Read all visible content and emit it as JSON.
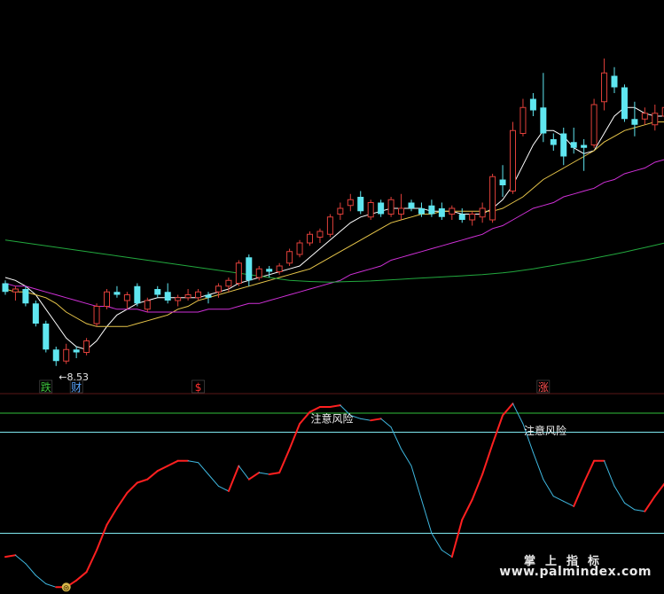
{
  "watermark": {
    "title": "掌上指标",
    "url": "www.palmindex.com"
  },
  "colors": {
    "up": "#e0403a",
    "down": "#5fe6f0",
    "ma5": "#ffffff",
    "ma10": "#e8c64a",
    "ma20": "#d030d8",
    "ma60": "#22a83e",
    "osc_up": "#ff2020",
    "osc_down": "#3fb8e0",
    "level_line": "#7fe8f0",
    "divider_green": "#2fbf3a",
    "divider_red": "#5a1818"
  },
  "chart_data": [
    {
      "type": "candlestick",
      "title": "",
      "low_annotation": "←8.53",
      "signals": [
        {
          "text": "跌",
          "color": "#3ec43e",
          "at": 4
        },
        {
          "text": "财",
          "color": "#5aa6ff",
          "at": 7
        },
        {
          "text": "$",
          "color": "#ff3030",
          "at": 19
        },
        {
          "text": "涨",
          "color": "#ff5050",
          "at": 53
        }
      ],
      "candles": [
        [
          11.4,
          11.5,
          11.0,
          11.1
        ],
        [
          11.1,
          11.3,
          10.8,
          11.2
        ],
        [
          11.2,
          11.3,
          10.6,
          10.7
        ],
        [
          10.7,
          10.8,
          9.9,
          10.0
        ],
        [
          10.0,
          10.1,
          9.0,
          9.1
        ],
        [
          9.1,
          9.2,
          8.53,
          8.7
        ],
        [
          8.7,
          9.3,
          8.6,
          9.1
        ],
        [
          9.1,
          9.2,
          8.8,
          9.0
        ],
        [
          9.0,
          9.5,
          8.9,
          9.4
        ],
        [
          10.0,
          10.7,
          9.9,
          10.6
        ],
        [
          10.6,
          11.2,
          10.5,
          11.1
        ],
        [
          11.1,
          11.3,
          10.9,
          11.0
        ],
        [
          10.8,
          11.1,
          10.5,
          11.0
        ],
        [
          11.3,
          11.4,
          10.6,
          10.7
        ],
        [
          10.5,
          10.9,
          10.4,
          10.8
        ],
        [
          11.2,
          11.3,
          10.9,
          11.0
        ],
        [
          11.1,
          11.4,
          10.7,
          10.8
        ],
        [
          10.8,
          11.0,
          10.6,
          10.9
        ],
        [
          10.9,
          11.2,
          10.8,
          11.0
        ],
        [
          10.9,
          11.2,
          10.8,
          11.1
        ],
        [
          11.0,
          11.1,
          10.7,
          10.9
        ],
        [
          11.1,
          11.4,
          10.9,
          11.3
        ],
        [
          11.3,
          11.6,
          11.1,
          11.5
        ],
        [
          11.4,
          12.2,
          11.3,
          12.1
        ],
        [
          12.3,
          12.4,
          11.3,
          11.5
        ],
        [
          11.6,
          12.0,
          11.5,
          11.9
        ],
        [
          11.9,
          12.0,
          11.6,
          11.8
        ],
        [
          11.8,
          12.1,
          11.7,
          12.0
        ],
        [
          12.1,
          12.6,
          12.0,
          12.5
        ],
        [
          12.4,
          12.9,
          12.3,
          12.8
        ],
        [
          12.8,
          13.2,
          12.7,
          13.1
        ],
        [
          13.0,
          13.3,
          12.8,
          13.2
        ],
        [
          13.1,
          13.8,
          13.0,
          13.7
        ],
        [
          13.8,
          14.2,
          13.6,
          14.0
        ],
        [
          14.1,
          14.5,
          13.9,
          14.3
        ],
        [
          14.4,
          14.6,
          13.8,
          13.9
        ],
        [
          13.7,
          14.3,
          13.6,
          14.2
        ],
        [
          14.2,
          14.3,
          13.7,
          13.8
        ],
        [
          13.8,
          14.4,
          13.7,
          14.3
        ],
        [
          13.8,
          14.5,
          13.6,
          14.0
        ],
        [
          14.2,
          14.3,
          13.9,
          14.0
        ],
        [
          14.0,
          14.2,
          13.7,
          13.8
        ],
        [
          14.1,
          14.3,
          13.7,
          13.8
        ],
        [
          14.0,
          14.2,
          13.6,
          13.7
        ],
        [
          13.8,
          14.1,
          13.6,
          14.0
        ],
        [
          13.8,
          14.0,
          13.5,
          13.6
        ],
        [
          13.6,
          13.9,
          13.4,
          13.8
        ],
        [
          13.7,
          14.2,
          13.5,
          14.0
        ],
        [
          13.6,
          15.2,
          13.5,
          15.1
        ],
        [
          15.0,
          15.5,
          14.4,
          14.8
        ],
        [
          14.6,
          17.0,
          14.5,
          16.7
        ],
        [
          16.6,
          17.8,
          16.5,
          17.5
        ],
        [
          17.8,
          18.0,
          17.2,
          17.4
        ],
        [
          17.5,
          18.7,
          16.3,
          16.6
        ],
        [
          16.4,
          16.6,
          16.0,
          16.2
        ],
        [
          16.6,
          16.8,
          15.5,
          15.8
        ],
        [
          16.3,
          16.8,
          15.9,
          16.1
        ],
        [
          16.2,
          16.4,
          15.3,
          16.1
        ],
        [
          16.2,
          17.8,
          16.1,
          17.6
        ],
        [
          17.7,
          19.2,
          17.4,
          18.7
        ],
        [
          18.6,
          18.9,
          18.0,
          18.2
        ],
        [
          18.2,
          18.3,
          17.0,
          17.1
        ],
        [
          17.1,
          17.7,
          16.5,
          16.9
        ],
        [
          17.1,
          17.5,
          16.9,
          17.3
        ],
        [
          16.9,
          17.6,
          16.7,
          17.3
        ],
        [
          17.2,
          17.6,
          16.8,
          17.5
        ],
        [
          17.6,
          18.1,
          17.0,
          17.8
        ]
      ],
      "ma": [
        {
          "key": "ma5",
          "values": [
            11.6,
            11.5,
            11.3,
            11.0,
            10.5,
            10.0,
            9.5,
            9.2,
            9.1,
            9.4,
            9.9,
            10.3,
            10.5,
            10.7,
            10.8,
            10.9,
            10.9,
            10.9,
            10.9,
            10.9,
            11.0,
            11.1,
            11.2,
            11.4,
            11.5,
            11.6,
            11.7,
            11.8,
            11.9,
            12.0,
            12.3,
            12.6,
            12.9,
            13.2,
            13.5,
            13.7,
            13.8,
            13.9,
            14.0,
            14.0,
            14.0,
            14.0,
            13.9,
            13.9,
            13.9,
            13.8,
            13.8,
            13.8,
            14.0,
            14.3,
            14.8,
            15.5,
            16.2,
            16.7,
            16.7,
            16.5,
            16.1,
            15.9,
            16.0,
            16.6,
            17.2,
            17.5,
            17.5,
            17.3,
            17.2,
            17.2,
            17.3
          ]
        },
        {
          "key": "ma10",
          "values": [
            11.2,
            11.1,
            11.1,
            11.0,
            10.9,
            10.7,
            10.4,
            10.2,
            10.0,
            9.9,
            9.9,
            9.9,
            9.9,
            10.0,
            10.1,
            10.2,
            10.3,
            10.5,
            10.6,
            10.8,
            10.9,
            11.0,
            11.1,
            11.2,
            11.3,
            11.4,
            11.5,
            11.6,
            11.7,
            11.8,
            11.9,
            12.1,
            12.3,
            12.5,
            12.7,
            12.9,
            13.1,
            13.3,
            13.5,
            13.6,
            13.7,
            13.8,
            13.8,
            13.9,
            13.9,
            13.9,
            13.9,
            13.9,
            13.9,
            14.0,
            14.2,
            14.4,
            14.7,
            15.0,
            15.2,
            15.4,
            15.6,
            15.8,
            16.0,
            16.3,
            16.5,
            16.7,
            16.8,
            16.9,
            17.0,
            17.0,
            17.1
          ]
        },
        {
          "key": "ma20",
          "values": [
            11.4,
            11.3,
            11.3,
            11.2,
            11.1,
            11.0,
            10.9,
            10.8,
            10.7,
            10.6,
            10.6,
            10.5,
            10.5,
            10.5,
            10.4,
            10.4,
            10.4,
            10.4,
            10.4,
            10.4,
            10.5,
            10.5,
            10.5,
            10.6,
            10.7,
            10.7,
            10.8,
            10.9,
            11.0,
            11.1,
            11.2,
            11.3,
            11.4,
            11.5,
            11.7,
            11.8,
            11.9,
            12.0,
            12.2,
            12.3,
            12.4,
            12.5,
            12.6,
            12.7,
            12.8,
            12.9,
            13.0,
            13.1,
            13.3,
            13.4,
            13.6,
            13.8,
            14.0,
            14.1,
            14.2,
            14.4,
            14.5,
            14.6,
            14.7,
            14.9,
            15.0,
            15.2,
            15.3,
            15.4,
            15.6,
            15.7,
            15.9
          ]
        },
        {
          "key": "ma60",
          "values": [
            12.9,
            12.85,
            12.8,
            12.75,
            12.7,
            12.65,
            12.6,
            12.55,
            12.5,
            12.45,
            12.4,
            12.35,
            12.3,
            12.25,
            12.2,
            12.15,
            12.1,
            12.05,
            12.0,
            11.95,
            11.9,
            11.85,
            11.8,
            11.75,
            11.7,
            11.65,
            11.6,
            11.55,
            11.5,
            11.48,
            11.46,
            11.45,
            11.44,
            11.45,
            11.46,
            11.47,
            11.48,
            11.5,
            11.52,
            11.54,
            11.56,
            11.58,
            11.6,
            11.62,
            11.64,
            11.66,
            11.68,
            11.7,
            11.73,
            11.76,
            11.8,
            11.85,
            11.9,
            11.96,
            12.02,
            12.08,
            12.14,
            12.2,
            12.27,
            12.34,
            12.41,
            12.48,
            12.56,
            12.64,
            12.72,
            12.8,
            12.9
          ]
        }
      ],
      "ylim": [
        8.0,
        20.0
      ]
    },
    {
      "type": "line",
      "title": "",
      "levels": [
        80,
        20
      ],
      "annotations": [
        {
          "text": "注意风险",
          "at": 30
        },
        {
          "text": "注意风险",
          "at": 51
        }
      ],
      "bottom_marker": {
        "text": "⊜",
        "at": 6
      },
      "values": [
        6,
        7,
        2,
        -5,
        -10,
        -12,
        -12,
        -8,
        -3,
        10,
        25,
        35,
        44,
        50,
        52,
        57,
        60,
        63,
        63,
        62,
        55,
        48,
        45,
        60,
        52,
        56,
        55,
        56,
        70,
        85,
        92,
        95,
        95,
        96,
        90,
        88,
        87,
        88,
        83,
        70,
        60,
        40,
        20,
        10,
        6,
        28,
        40,
        55,
        73,
        90,
        97,
        85,
        68,
        52,
        42,
        39,
        36,
        50,
        63,
        63,
        48,
        38,
        34,
        33,
        42,
        50,
        48
      ]
    }
  ]
}
